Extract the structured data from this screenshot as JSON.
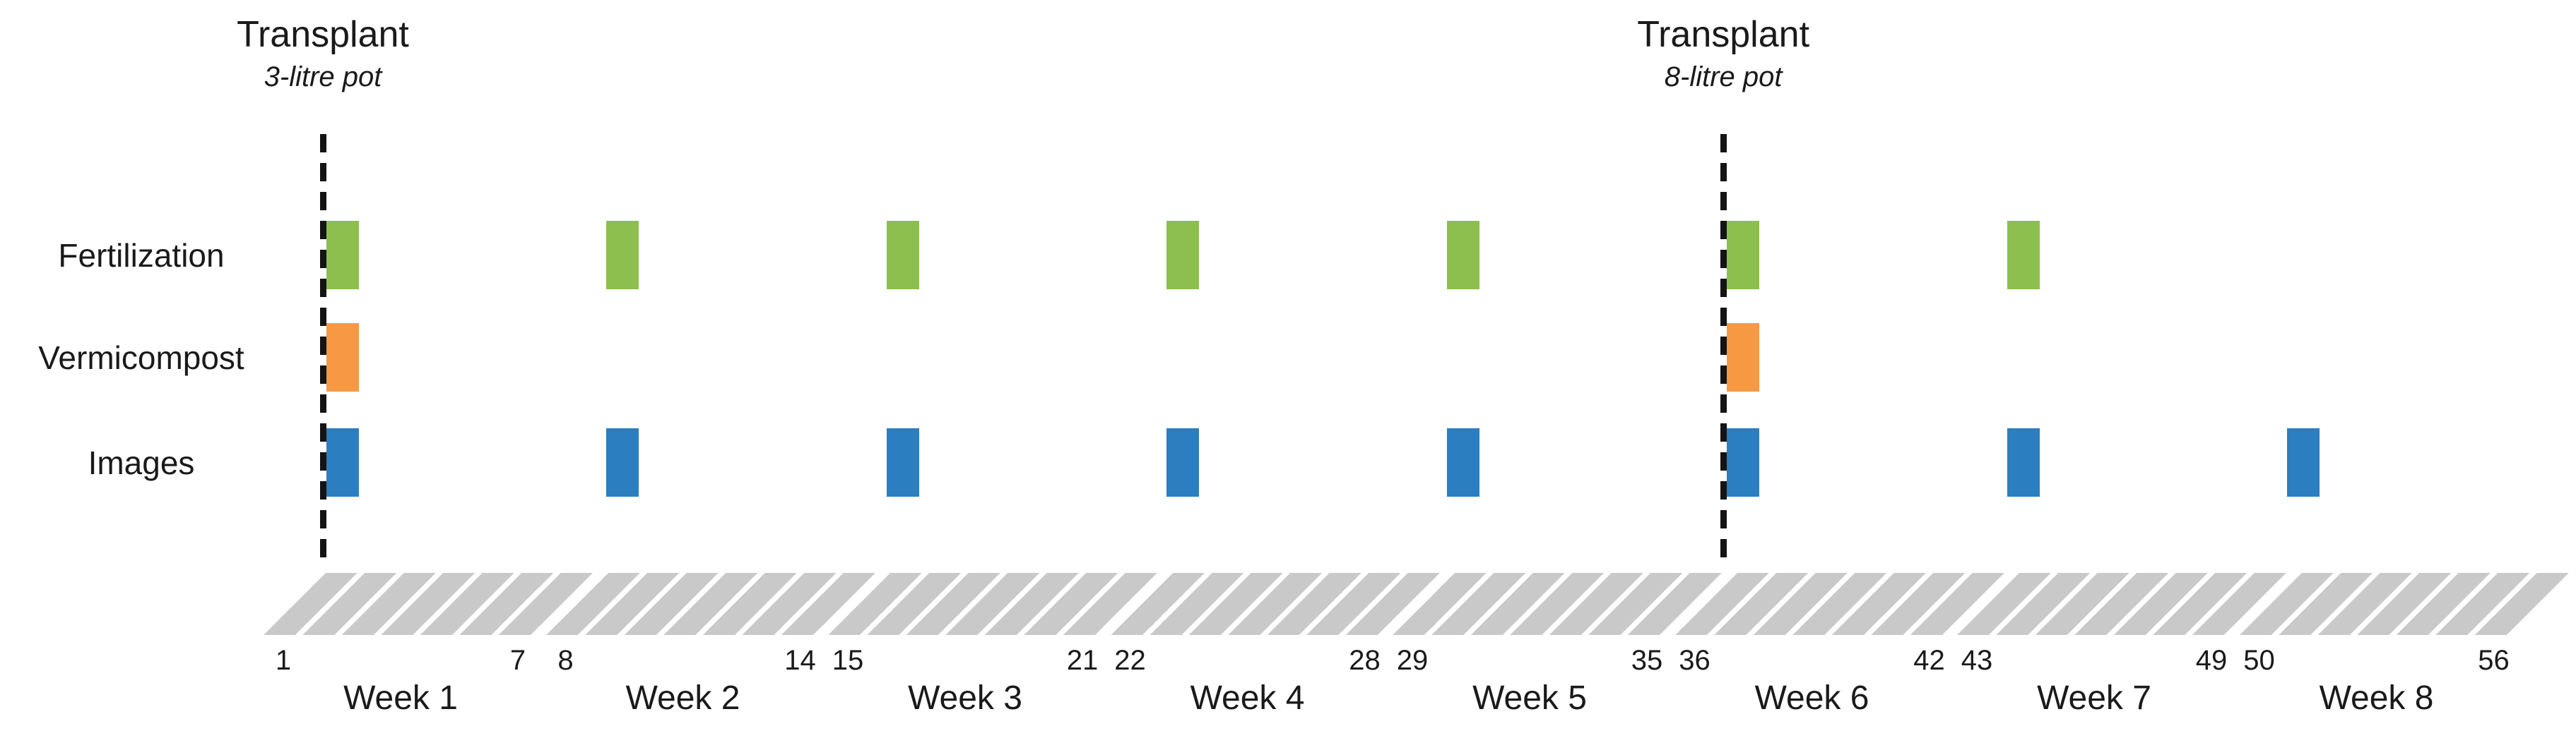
{
  "figure": {
    "background": "#ffffff",
    "text_color": "#1a1a1a"
  },
  "colors": {
    "fertilization": "#8cbf4e",
    "vermicompost": "#f79843",
    "images": "#2b7ec0",
    "hatch": "#c9c9c9",
    "dashed_line": "#141414"
  },
  "transplants": [
    {
      "title": "Transplant",
      "subtitle": "3-litre pot",
      "week": 1
    },
    {
      "title": "Transplant",
      "subtitle": "8-litre pot",
      "week": 6
    }
  ],
  "rows": [
    {
      "id": "fertilization",
      "label": "Fertilization",
      "weeks": [
        1,
        2,
        3,
        4,
        5,
        6,
        7
      ]
    },
    {
      "id": "vermicompost",
      "label": "Vermicompost",
      "weeks": [
        1,
        6
      ]
    },
    {
      "id": "images",
      "label": "Images",
      "weeks": [
        1,
        2,
        3,
        4,
        5,
        6,
        7,
        8
      ]
    }
  ],
  "timeline": {
    "unit": "day",
    "segments": [
      {
        "week_label": "Week 1",
        "first_day": "1",
        "last_day": "7"
      },
      {
        "week_label": "Week 2",
        "first_day": "8",
        "last_day": "14"
      },
      {
        "week_label": "Week 3",
        "first_day": "15",
        "last_day": "21"
      },
      {
        "week_label": "Week 4",
        "first_day": "22",
        "last_day": "28"
      },
      {
        "week_label": "Week 5",
        "first_day": "29",
        "last_day": "35"
      },
      {
        "week_label": "Week 6",
        "first_day": "36",
        "last_day": "42"
      },
      {
        "week_label": "Week 7",
        "first_day": "43",
        "last_day": "49"
      },
      {
        "week_label": "Week 8",
        "first_day": "50",
        "last_day": "56"
      }
    ]
  }
}
